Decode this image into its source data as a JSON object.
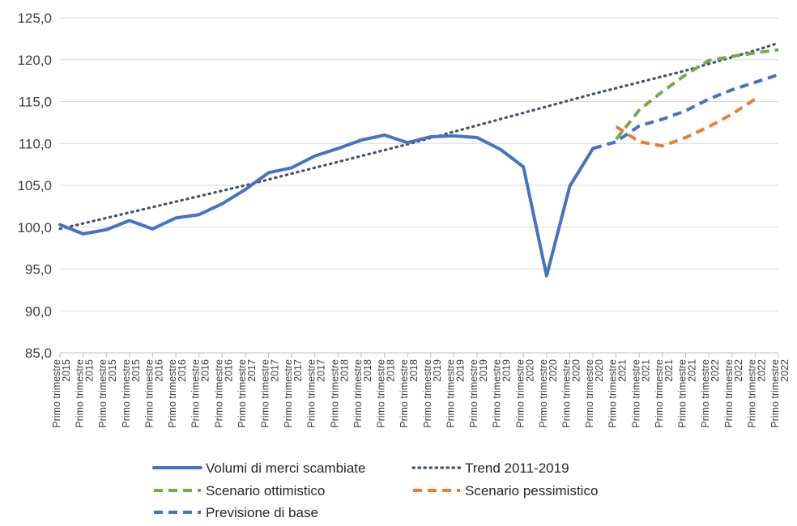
{
  "chart_data": {
    "type": "line",
    "title": "",
    "xlabel": "",
    "ylabel": "",
    "ylim": [
      85,
      125
    ],
    "yticks": [
      "85,0",
      "90,0",
      "95,0",
      "100,0",
      "105,0",
      "110,0",
      "115,0",
      "120,0",
      "125,0"
    ],
    "grid": "horizontal",
    "legend_position": "bottom",
    "categories": [
      "Primo trimestre 2015",
      "Primo trimestre 2015",
      "Primo trimestre 2015",
      "Primo trimestre 2015",
      "Primo trimestre 2016",
      "Primo trimestre 2016",
      "Primo trimestre 2016",
      "Primo trimestre 2016",
      "Primo trimestre 2017",
      "Primo trimestre 2017",
      "Primo trimestre 2017",
      "Primo trimestre 2017",
      "Primo trimestre 2018",
      "Primo trimestre 2018",
      "Primo trimestre 2018",
      "Primo trimestre 2018",
      "Primo trimestre 2019",
      "Primo trimestre 2019",
      "Primo trimestre 2019",
      "Primo trimestre 2019",
      "Primo trimestre 2020",
      "Primo trimestre 2020",
      "Primo trimestre 2020",
      "Primo trimestre 2020",
      "Primo trimestre 2021",
      "Primo trimestre 2021",
      "Primo trimestre 2021",
      "Primo trimestre 2021",
      "Primo trimestre 2022",
      "Primo trimestre 2022",
      "Primo trimestre 2022",
      "Primo trimestre 2022"
    ],
    "series": [
      {
        "name": "Volumi di merci scambiate",
        "color": "#4472c4",
        "style": "solid",
        "values": [
          100.3,
          99.2,
          99.7,
          100.8,
          99.8,
          101.1,
          101.5,
          102.8,
          104.5,
          106.5,
          107.1,
          108.5,
          109.4,
          110.4,
          111.0,
          110.1,
          110.8,
          110.9,
          110.7,
          109.3,
          107.2,
          94.2,
          104.9,
          109.4,
          null,
          null,
          null,
          null,
          null,
          null,
          null,
          null
        ]
      },
      {
        "name": "Trend 2011-2019",
        "color": "#44546a",
        "style": "dotted",
        "values": [
          99.8,
          100.45,
          101.1,
          101.75,
          102.4,
          103.05,
          103.7,
          104.35,
          105.0,
          105.7,
          106.4,
          107.1,
          107.8,
          108.5,
          109.2,
          109.9,
          110.65,
          111.4,
          112.15,
          112.9,
          113.65,
          114.4,
          115.15,
          115.9,
          116.6,
          117.3,
          118.0,
          118.7,
          119.5,
          120.3,
          121.1,
          122.0
        ]
      },
      {
        "name": "Scenario ottimistico",
        "color": "#70ad47",
        "style": "dashed",
        "values": [
          null,
          null,
          null,
          null,
          null,
          null,
          null,
          null,
          null,
          null,
          null,
          null,
          null,
          null,
          null,
          null,
          null,
          null,
          null,
          null,
          null,
          null,
          null,
          null,
          110.5,
          114.0,
          116.2,
          118.2,
          119.9,
          120.4,
          120.8,
          121.2
        ]
      },
      {
        "name": "Scenario pessimistico",
        "color": "#ed7d31",
        "style": "dashed",
        "values": [
          null,
          null,
          null,
          null,
          null,
          null,
          null,
          null,
          null,
          null,
          null,
          null,
          null,
          null,
          null,
          null,
          null,
          null,
          null,
          null,
          null,
          null,
          null,
          null,
          112.0,
          110.2,
          109.7,
          110.7,
          112.0,
          113.5,
          115.3,
          null
        ]
      },
      {
        "name": "Previsione di base",
        "color": "#4472c4",
        "style": "dashed",
        "values": [
          null,
          null,
          null,
          null,
          null,
          null,
          null,
          null,
          null,
          null,
          null,
          null,
          null,
          null,
          null,
          null,
          null,
          null,
          null,
          null,
          null,
          null,
          null,
          109.4,
          110.2,
          112.1,
          112.9,
          113.9,
          115.3,
          116.4,
          117.3,
          118.2
        ]
      }
    ]
  }
}
